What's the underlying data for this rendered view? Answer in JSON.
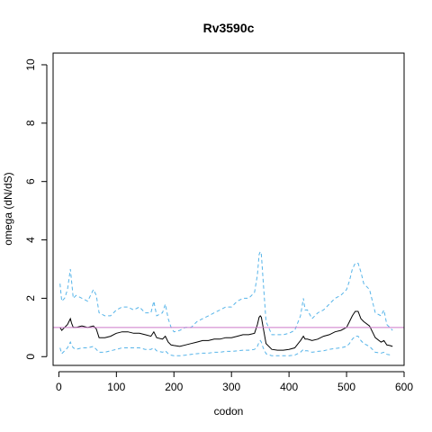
{
  "chart_data": {
    "type": "line",
    "title": "Rv3590c",
    "xlabel": "codon",
    "ylabel": "omega (dN/dS)",
    "xlim": [
      -10,
      600
    ],
    "ylim": [
      -0.3,
      10.4
    ],
    "x_ticks": [
      0,
      100,
      200,
      300,
      400,
      500,
      600
    ],
    "y_ticks": [
      0,
      2,
      4,
      6,
      8,
      10
    ],
    "x_tick_labels": [
      "0",
      "100",
      "200",
      "300",
      "400",
      "500",
      "600"
    ],
    "y_tick_labels": [
      "0",
      "2",
      "4",
      "6",
      "8",
      "10"
    ],
    "grid": false,
    "reference_line": {
      "y": 1,
      "color": "#cc79c9"
    },
    "colors": {
      "omega": "#000000",
      "ci": "#56b4e9"
    },
    "series": [
      {
        "key": "upper",
        "style": "dashed",
        "x": [
          2,
          5,
          10,
          15,
          20,
          22,
          25,
          30,
          40,
          50,
          60,
          65,
          70,
          80,
          90,
          100,
          110,
          120,
          130,
          140,
          150,
          160,
          165,
          170,
          180,
          185,
          190,
          195,
          200,
          210,
          220,
          230,
          240,
          250,
          260,
          270,
          280,
          290,
          300,
          310,
          320,
          330,
          340,
          345,
          348,
          350,
          352,
          355,
          360,
          370,
          380,
          390,
          400,
          410,
          420,
          425,
          428,
          432,
          440,
          450,
          460,
          470,
          480,
          490,
          500,
          505,
          510,
          515,
          520,
          525,
          530,
          540,
          550,
          560,
          565,
          570,
          575,
          580
        ],
        "y": [
          2.5,
          1.9,
          2.0,
          2.3,
          3.0,
          2.6,
          2.0,
          2.1,
          2.0,
          1.9,
          2.3,
          2.1,
          1.5,
          1.4,
          1.4,
          1.6,
          1.7,
          1.7,
          1.6,
          1.7,
          1.5,
          1.5,
          1.9,
          1.4,
          1.5,
          1.8,
          1.3,
          1.0,
          0.85,
          0.9,
          1.0,
          1.0,
          1.2,
          1.3,
          1.4,
          1.5,
          1.6,
          1.7,
          1.7,
          1.9,
          2.0,
          2.0,
          2.2,
          2.8,
          3.5,
          3.6,
          3.5,
          2.6,
          1.2,
          0.75,
          0.75,
          0.75,
          0.8,
          0.9,
          1.4,
          2.0,
          1.6,
          1.6,
          1.3,
          1.5,
          1.6,
          1.8,
          2.0,
          2.1,
          2.3,
          2.6,
          3.0,
          3.2,
          3.2,
          2.9,
          2.5,
          2.3,
          1.5,
          1.4,
          1.6,
          1.1,
          1.0,
          0.9
        ]
      },
      {
        "key": "omega",
        "style": "solid",
        "x": [
          2,
          5,
          10,
          15,
          20,
          22,
          25,
          30,
          40,
          50,
          60,
          65,
          70,
          80,
          90,
          100,
          110,
          120,
          130,
          140,
          150,
          160,
          165,
          170,
          180,
          185,
          190,
          195,
          200,
          210,
          220,
          230,
          240,
          250,
          260,
          270,
          280,
          290,
          300,
          310,
          320,
          330,
          340,
          345,
          348,
          350,
          352,
          355,
          360,
          370,
          380,
          390,
          400,
          410,
          420,
          425,
          428,
          432,
          440,
          450,
          460,
          470,
          480,
          490,
          500,
          505,
          510,
          515,
          520,
          525,
          530,
          540,
          550,
          560,
          565,
          570,
          575,
          580
        ],
        "y": [
          1.0,
          0.9,
          1.0,
          1.1,
          1.3,
          1.15,
          1.0,
          1.0,
          1.05,
          1.0,
          1.05,
          0.95,
          0.65,
          0.65,
          0.7,
          0.8,
          0.85,
          0.85,
          0.8,
          0.8,
          0.75,
          0.7,
          0.85,
          0.65,
          0.6,
          0.7,
          0.5,
          0.4,
          0.38,
          0.35,
          0.4,
          0.45,
          0.5,
          0.55,
          0.55,
          0.6,
          0.6,
          0.65,
          0.65,
          0.7,
          0.75,
          0.75,
          0.8,
          1.1,
          1.35,
          1.4,
          1.35,
          1.0,
          0.45,
          0.25,
          0.22,
          0.22,
          0.25,
          0.3,
          0.55,
          0.7,
          0.6,
          0.6,
          0.55,
          0.6,
          0.7,
          0.75,
          0.85,
          0.9,
          1.0,
          1.2,
          1.4,
          1.55,
          1.55,
          1.3,
          1.2,
          1.05,
          0.65,
          0.5,
          0.55,
          0.4,
          0.38,
          0.35
        ]
      },
      {
        "key": "lower",
        "style": "dashed",
        "x": [
          2,
          5,
          10,
          15,
          20,
          22,
          25,
          30,
          40,
          50,
          60,
          65,
          70,
          80,
          90,
          100,
          110,
          120,
          130,
          140,
          150,
          160,
          165,
          170,
          180,
          185,
          190,
          195,
          200,
          210,
          220,
          230,
          240,
          250,
          260,
          270,
          280,
          290,
          300,
          310,
          320,
          330,
          340,
          345,
          348,
          350,
          352,
          355,
          360,
          370,
          380,
          390,
          400,
          410,
          420,
          425,
          428,
          432,
          440,
          450,
          460,
          470,
          480,
          490,
          500,
          505,
          510,
          515,
          520,
          525,
          530,
          540,
          550,
          560,
          565,
          570,
          575,
          580
        ],
        "y": [
          0.3,
          0.1,
          0.2,
          0.3,
          0.5,
          0.4,
          0.3,
          0.25,
          0.3,
          0.3,
          0.35,
          0.25,
          0.15,
          0.15,
          0.2,
          0.25,
          0.3,
          0.3,
          0.3,
          0.3,
          0.25,
          0.25,
          0.3,
          0.2,
          0.15,
          0.2,
          0.1,
          0.05,
          0.03,
          0.03,
          0.05,
          0.08,
          0.1,
          0.12,
          0.12,
          0.15,
          0.15,
          0.18,
          0.18,
          0.2,
          0.22,
          0.22,
          0.25,
          0.35,
          0.5,
          0.55,
          0.5,
          0.3,
          0.1,
          0.03,
          0.03,
          0.03,
          0.03,
          0.05,
          0.15,
          0.25,
          0.2,
          0.2,
          0.15,
          0.18,
          0.2,
          0.25,
          0.28,
          0.3,
          0.35,
          0.45,
          0.6,
          0.7,
          0.7,
          0.55,
          0.45,
          0.35,
          0.15,
          0.12,
          0.15,
          0.08,
          0.06,
          0.05
        ]
      }
    ]
  }
}
